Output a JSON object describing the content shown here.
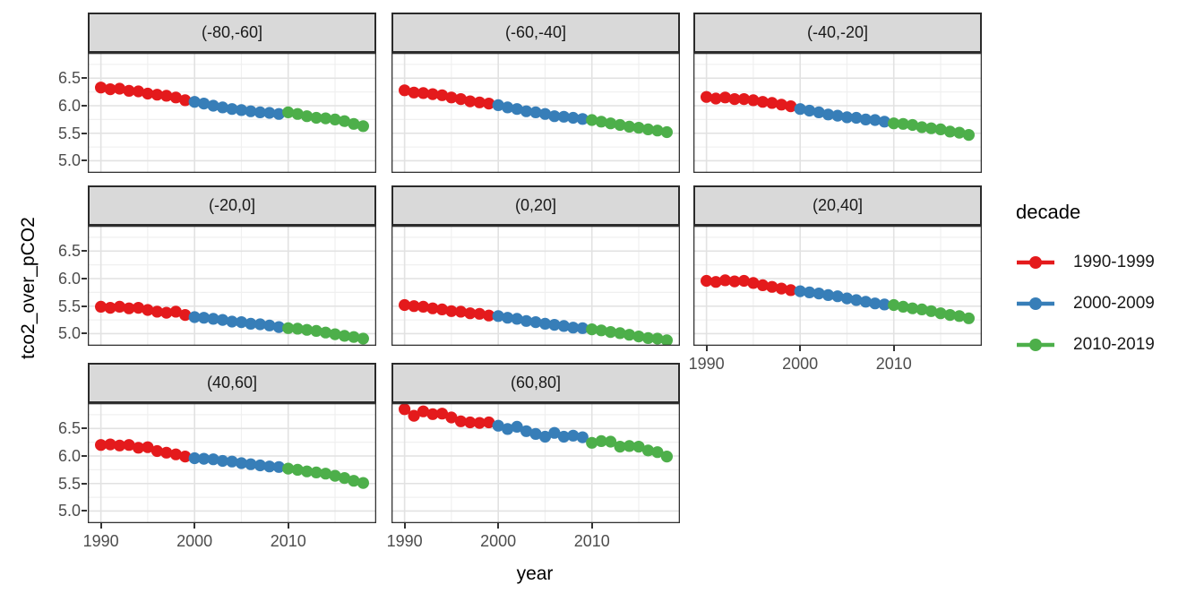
{
  "chart_data": {
    "type": "scatter",
    "title": "",
    "xlabel": "year",
    "ylabel": "tco2_over_pCO2",
    "x_ticks": [
      1990,
      2000,
      2010
    ],
    "y_ticks": [
      5.0,
      5.5,
      6.0,
      6.5
    ],
    "x_minor": [
      1995,
      2005,
      2015
    ],
    "y_minor": [
      5.25,
      5.75,
      6.25,
      6.75
    ],
    "xlim": [
      1988.6,
      2019.4
    ],
    "ylim": [
      4.78,
      6.96
    ],
    "grid": true,
    "years": [
      1990,
      1991,
      1992,
      1993,
      1994,
      1995,
      1996,
      1997,
      1998,
      1999,
      2000,
      2001,
      2002,
      2003,
      2004,
      2005,
      2006,
      2007,
      2008,
      2009,
      2010,
      2011,
      2012,
      2013,
      2014,
      2015,
      2016,
      2017,
      2018
    ],
    "legend": {
      "title": "decade",
      "position": "right"
    },
    "series": [
      {
        "name": "1990-1999",
        "color": "#E41A1C",
        "year_start": 1990,
        "year_end": 1999
      },
      {
        "name": "2000-2009",
        "color": "#377EB8",
        "year_start": 2000,
        "year_end": 2009
      },
      {
        "name": "2010-2019",
        "color": "#4DAF4A",
        "year_start": 2010,
        "year_end": 2019
      }
    ],
    "facets": [
      {
        "label": "(-80,-60]",
        "axis_bottom": false,
        "values": [
          6.33,
          6.3,
          6.31,
          6.27,
          6.26,
          6.22,
          6.2,
          6.18,
          6.15,
          6.1,
          6.07,
          6.04,
          6.0,
          5.97,
          5.94,
          5.92,
          5.9,
          5.88,
          5.87,
          5.85,
          5.88,
          5.85,
          5.81,
          5.78,
          5.77,
          5.75,
          5.72,
          5.67,
          5.63
        ]
      },
      {
        "label": "(-60,-40]",
        "axis_bottom": false,
        "values": [
          6.28,
          6.24,
          6.23,
          6.21,
          6.19,
          6.15,
          6.12,
          6.08,
          6.06,
          6.04,
          6.01,
          5.97,
          5.94,
          5.9,
          5.88,
          5.85,
          5.81,
          5.8,
          5.78,
          5.76,
          5.74,
          5.71,
          5.68,
          5.65,
          5.62,
          5.6,
          5.57,
          5.55,
          5.52
        ]
      },
      {
        "label": "(-40,-20]",
        "axis_bottom": false,
        "values": [
          6.16,
          6.13,
          6.15,
          6.12,
          6.12,
          6.1,
          6.07,
          6.05,
          6.02,
          5.99,
          5.94,
          5.91,
          5.88,
          5.84,
          5.82,
          5.79,
          5.78,
          5.75,
          5.74,
          5.71,
          5.68,
          5.67,
          5.65,
          5.61,
          5.59,
          5.57,
          5.53,
          5.51,
          5.47
        ]
      },
      {
        "label": "(-20,0]",
        "axis_bottom": false,
        "values": [
          5.49,
          5.47,
          5.49,
          5.46,
          5.47,
          5.43,
          5.4,
          5.38,
          5.4,
          5.34,
          5.3,
          5.29,
          5.27,
          5.25,
          5.22,
          5.21,
          5.18,
          5.17,
          5.15,
          5.12,
          5.1,
          5.09,
          5.07,
          5.05,
          5.02,
          4.99,
          4.96,
          4.94,
          4.91
        ]
      },
      {
        "label": "(0,20]",
        "axis_bottom": false,
        "values": [
          5.52,
          5.5,
          5.49,
          5.46,
          5.44,
          5.41,
          5.4,
          5.37,
          5.36,
          5.33,
          5.32,
          5.29,
          5.27,
          5.23,
          5.21,
          5.18,
          5.16,
          5.14,
          5.11,
          5.1,
          5.08,
          5.06,
          5.03,
          5.01,
          4.98,
          4.95,
          4.92,
          4.91,
          4.88
        ]
      },
      {
        "label": "(20,40]",
        "axis_bottom": true,
        "values": [
          5.96,
          5.94,
          5.97,
          5.95,
          5.96,
          5.92,
          5.88,
          5.85,
          5.82,
          5.79,
          5.77,
          5.75,
          5.73,
          5.7,
          5.68,
          5.64,
          5.61,
          5.58,
          5.55,
          5.53,
          5.52,
          5.49,
          5.46,
          5.44,
          5.41,
          5.37,
          5.34,
          5.32,
          5.28
        ]
      },
      {
        "label": "(40,60]",
        "axis_bottom": true,
        "values": [
          6.2,
          6.21,
          6.19,
          6.2,
          6.15,
          6.16,
          6.09,
          6.06,
          6.03,
          5.99,
          5.96,
          5.95,
          5.94,
          5.91,
          5.9,
          5.87,
          5.85,
          5.83,
          5.81,
          5.8,
          5.77,
          5.75,
          5.72,
          5.7,
          5.68,
          5.64,
          5.6,
          5.55,
          5.51
        ]
      },
      {
        "label": "(60,80]",
        "axis_bottom": true,
        "values": [
          6.85,
          6.73,
          6.81,
          6.76,
          6.77,
          6.7,
          6.63,
          6.61,
          6.6,
          6.61,
          6.55,
          6.49,
          6.53,
          6.45,
          6.4,
          6.35,
          6.42,
          6.35,
          6.37,
          6.34,
          6.24,
          6.27,
          6.26,
          6.17,
          6.18,
          6.17,
          6.1,
          6.07,
          5.99
        ]
      }
    ]
  },
  "colors": {
    "strip_bg": "#D9D9D9",
    "strip_border": "#2B2B2B",
    "panel_border": "#333333",
    "grid_major": "#E2E2E2",
    "grid_minor": "#F0F0F0",
    "axis_text": "#4D4D4D",
    "title_text": "#000000"
  }
}
